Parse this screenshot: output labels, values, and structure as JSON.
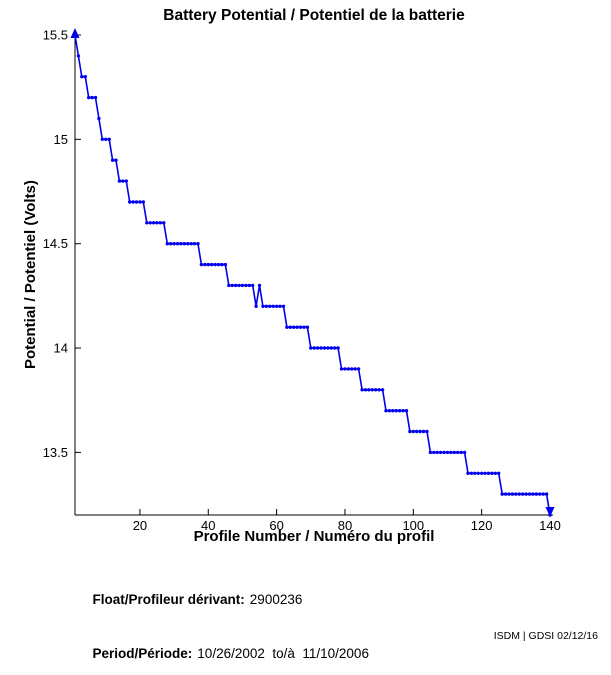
{
  "title": "Battery Potential / Potentiel de la batterie",
  "chart_data": {
    "type": "line",
    "title": "Battery Potential / Potentiel de la batterie",
    "xlabel": "Profile Number / Numéro du profil",
    "ylabel": "Potential / Potentiel (Volts)",
    "xlim": [
      1,
      140
    ],
    "ylim": [
      13.2,
      15.5
    ],
    "xticks": [
      20,
      40,
      60,
      80,
      100,
      120,
      140
    ],
    "yticks": [
      13.5,
      14,
      14.5,
      15,
      15.5
    ],
    "grid": false,
    "legend": "none",
    "line_color": "#0000ee",
    "axis_color": "#000000",
    "marker": "dot",
    "clip_arrows": {
      "start": "up",
      "end": "down"
    },
    "series": [
      {
        "name": "battery-potential",
        "x_first": 1,
        "x_step": 1,
        "y": [
          15.5,
          15.4,
          15.3,
          15.3,
          15.2,
          15.2,
          15.2,
          15.1,
          15.0,
          15.0,
          15.0,
          14.9,
          14.9,
          14.8,
          14.8,
          14.8,
          14.7,
          14.7,
          14.7,
          14.7,
          14.7,
          14.6,
          14.6,
          14.6,
          14.6,
          14.6,
          14.6,
          14.5,
          14.5,
          14.5,
          14.5,
          14.5,
          14.5,
          14.5,
          14.5,
          14.5,
          14.5,
          14.4,
          14.4,
          14.4,
          14.4,
          14.4,
          14.4,
          14.4,
          14.4,
          14.3,
          14.3,
          14.3,
          14.3,
          14.3,
          14.3,
          14.3,
          14.3,
          14.2,
          14.3,
          14.2,
          14.2,
          14.2,
          14.2,
          14.2,
          14.2,
          14.2,
          14.1,
          14.1,
          14.1,
          14.1,
          14.1,
          14.1,
          14.1,
          14.0,
          14.0,
          14.0,
          14.0,
          14.0,
          14.0,
          14.0,
          14.0,
          14.0,
          13.9,
          13.9,
          13.9,
          13.9,
          13.9,
          13.9,
          13.8,
          13.8,
          13.8,
          13.8,
          13.8,
          13.8,
          13.8,
          13.7,
          13.7,
          13.7,
          13.7,
          13.7,
          13.7,
          13.7,
          13.6,
          13.6,
          13.6,
          13.6,
          13.6,
          13.6,
          13.5,
          13.5,
          13.5,
          13.5,
          13.5,
          13.5,
          13.5,
          13.5,
          13.5,
          13.5,
          13.5,
          13.4,
          13.4,
          13.4,
          13.4,
          13.4,
          13.4,
          13.4,
          13.4,
          13.4,
          13.4,
          13.3,
          13.3,
          13.3,
          13.3,
          13.3,
          13.3,
          13.3,
          13.3,
          13.3,
          13.3,
          13.3,
          13.3,
          13.3,
          13.3,
          13.2
        ]
      }
    ]
  },
  "footer": {
    "float_label": "Float/Profileur dérivant:",
    "float_value": "2900236",
    "period_label": "Period/Période:",
    "period_value": "10/26/2002  to/à  11/10/2006",
    "credit": "ISDM | GDSI 02/12/16"
  }
}
